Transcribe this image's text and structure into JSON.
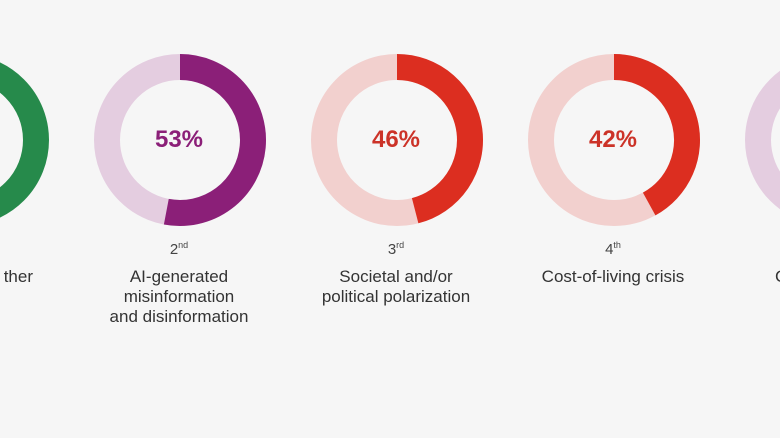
{
  "chart_data": {
    "type": "donut",
    "items": [
      {
        "rank": null,
        "rank_suffix": null,
        "label_visible": "ther",
        "value": null,
        "color": "#268a4b",
        "track": "#268a4b",
        "text_color": null
      },
      {
        "rank": "2",
        "rank_suffix": "nd",
        "label_lines": [
          "AI-generated",
          "misinformation",
          "and disinformation"
        ],
        "value": 53,
        "value_label": "53%",
        "color": "#8b1f78",
        "track": "#e4cde0",
        "text_color": "#8b1f78"
      },
      {
        "rank": "3",
        "rank_suffix": "rd",
        "label_lines": [
          "Societal and/or",
          "political polarization"
        ],
        "value": 46,
        "value_label": "46%",
        "color": "#dc2e20",
        "track": "#f2d0ce",
        "text_color": "#cc3328"
      },
      {
        "rank": "4",
        "rank_suffix": "th",
        "label_lines": [
          "Cost-of-living crisis"
        ],
        "value": 42,
        "value_label": "42%",
        "color": "#dc2e20",
        "track": "#f2d0ce",
        "text_color": "#cc3328"
      },
      {
        "rank": null,
        "rank_suffix": null,
        "label_visible": "C",
        "value": null,
        "color": "#e4cde0",
        "track": "#e4cde0",
        "text_color": null
      }
    ]
  }
}
